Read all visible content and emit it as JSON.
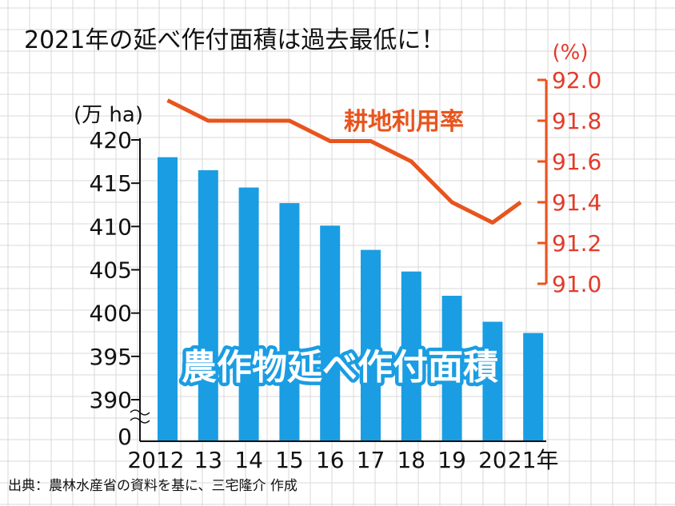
{
  "title": "2021年の延べ作付面積は過去最低に！",
  "source": "出典：農林水産省の資料を基に、三宅隆介 作成",
  "chart_data": [
    {
      "type": "bar",
      "series": [
        {
          "name": "農作物延べ作付面積",
          "values": [
            418,
            416.5,
            414.5,
            412.7,
            410.1,
            407.3,
            404.8,
            402,
            399,
            397.7
          ]
        }
      ],
      "categories": [
        "2012",
        "13",
        "14",
        "15",
        "16",
        "17",
        "18",
        "19",
        "20",
        "21"
      ],
      "category_labels": [
        "2012",
        "13",
        "14",
        "15",
        "16",
        "17",
        "18",
        "19",
        "20",
        "21年"
      ],
      "ylabel": "(万 ha)",
      "yticks": [
        "0",
        "390",
        "395",
        "400",
        "405",
        "410",
        "415",
        "420"
      ],
      "ylim": [
        390,
        420
      ],
      "axis_break": true,
      "color": "#1a9de3",
      "grid": true
    },
    {
      "type": "line",
      "series": [
        {
          "name": "耕地利用率",
          "values": [
            91.9,
            91.8,
            91.8,
            91.8,
            91.7,
            91.7,
            91.6,
            91.4,
            91.3,
            91.4
          ]
        }
      ],
      "categories": [
        "2012",
        "13",
        "14",
        "15",
        "16",
        "17",
        "18",
        "19",
        "20",
        "21"
      ],
      "ylabel": "(%)",
      "yticks": [
        "91.0",
        "91.2",
        "91.4",
        "91.6",
        "91.8",
        "92.0"
      ],
      "ylim": [
        91.0,
        92.0
      ],
      "axis_side": "right",
      "color": "#e8541e"
    }
  ]
}
